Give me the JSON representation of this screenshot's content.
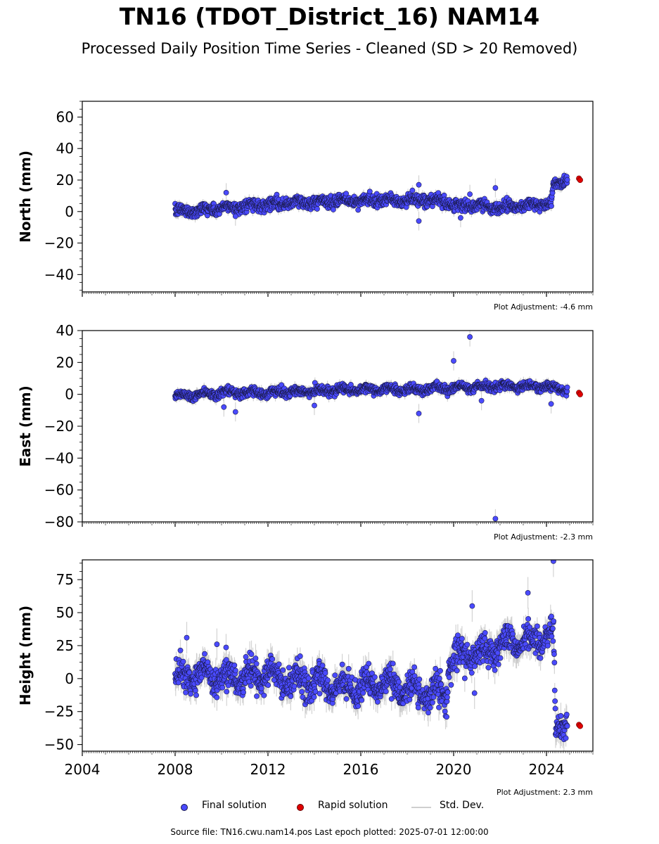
{
  "header": {
    "title": "TN16 (TDOT_District_16) NAM14",
    "subtitle": "Processed Daily Position Time Series - Cleaned (SD > 20 Removed)"
  },
  "colors": {
    "final": "#4a4aff",
    "final_edge": "#1a1a4a",
    "rapid": "#e00000",
    "std": "#c8c8c8"
  },
  "legend": {
    "final": "Final solution",
    "rapid": "Rapid solution",
    "std": "Std. Dev."
  },
  "footer": "Source file: TN16.cwu.nam14.pos  Last epoch plotted: 2025-07-01 12:00:00",
  "chart_data": [
    {
      "type": "scatter",
      "ylabel": "North (mm)",
      "xlim": [
        2004,
        2026
      ],
      "ylim": [
        -51,
        70
      ],
      "yticks": [
        -40,
        -20,
        0,
        20,
        40,
        60
      ],
      "adjustment": "Plot Adjustment: -4.6 mm",
      "trend": [
        [
          2008.0,
          0
        ],
        [
          2010.0,
          2
        ],
        [
          2012.0,
          5
        ],
        [
          2014.0,
          6
        ],
        [
          2016.0,
          7
        ],
        [
          2018.0,
          7
        ],
        [
          2019.6,
          7
        ],
        [
          2020.0,
          4
        ],
        [
          2022.0,
          3
        ],
        [
          2024.2,
          5
        ],
        [
          2024.3,
          16
        ],
        [
          2024.9,
          22
        ]
      ],
      "noise": 3.0,
      "outliers": [
        [
          2018.5,
          17
        ],
        [
          2018.5,
          -6
        ],
        [
          2021.8,
          15
        ],
        [
          2020.7,
          11
        ],
        [
          2010.2,
          12
        ],
        [
          2020.3,
          -4
        ],
        [
          2010.6,
          -3
        ]
      ],
      "rapid": [
        [
          2025.4,
          21
        ],
        [
          2025.45,
          20
        ]
      ]
    },
    {
      "type": "scatter",
      "ylabel": "East (mm)",
      "xlim": [
        2004,
        2026
      ],
      "ylim": [
        -80,
        40
      ],
      "yticks": [
        -80,
        -60,
        -40,
        -20,
        0,
        20,
        40
      ],
      "adjustment": "Plot Adjustment: -2.3 mm",
      "trend": [
        [
          2008.0,
          -1
        ],
        [
          2010.0,
          1
        ],
        [
          2012.0,
          1
        ],
        [
          2014.0,
          2
        ],
        [
          2016.0,
          3
        ],
        [
          2018.0,
          3
        ],
        [
          2020.0,
          4
        ],
        [
          2022.0,
          5
        ],
        [
          2024.0,
          5
        ],
        [
          2024.9,
          3
        ]
      ],
      "noise": 2.2,
      "outliers": [
        [
          2020.0,
          21
        ],
        [
          2020.7,
          36
        ],
        [
          2021.8,
          -78
        ],
        [
          2018.5,
          -12
        ],
        [
          2010.1,
          -8
        ],
        [
          2010.6,
          -11
        ],
        [
          2021.2,
          -4
        ],
        [
          2024.2,
          -6
        ],
        [
          2014.0,
          -7
        ]
      ],
      "rapid": [
        [
          2025.4,
          1
        ],
        [
          2025.45,
          0
        ]
      ]
    },
    {
      "type": "scatter",
      "ylabel": "Height (mm)",
      "xlim": [
        2004,
        2026
      ],
      "ylim": [
        -55,
        90
      ],
      "yticks": [
        -50,
        -25,
        0,
        25,
        50,
        75
      ],
      "xticks": [
        2004,
        2008,
        2012,
        2016,
        2020,
        2024
      ],
      "adjustment": "Plot Adjustment: 2.3 mm",
      "trend": [
        [
          2008.0,
          0
        ],
        [
          2009.0,
          5
        ],
        [
          2010.0,
          0
        ],
        [
          2011.0,
          2
        ],
        [
          2012.0,
          3
        ],
        [
          2013.0,
          -2
        ],
        [
          2014.0,
          -3
        ],
        [
          2015.0,
          -6
        ],
        [
          2016.0,
          -6
        ],
        [
          2017.0,
          -4
        ],
        [
          2018.0,
          -8
        ],
        [
          2019.0,
          -10
        ],
        [
          2019.7,
          -12
        ],
        [
          2019.8,
          15
        ],
        [
          2020.5,
          18
        ],
        [
          2021.5,
          20
        ],
        [
          2022.5,
          28
        ],
        [
          2023.5,
          30
        ],
        [
          2024.3,
          32
        ],
        [
          2024.4,
          -38
        ],
        [
          2024.9,
          -30
        ]
      ],
      "noise": 9.0,
      "outliers": [
        [
          2024.3,
          89
        ],
        [
          2023.2,
          65
        ],
        [
          2020.8,
          55
        ],
        [
          2008.5,
          31
        ],
        [
          2020.9,
          -11
        ],
        [
          2009.8,
          26
        ]
      ],
      "rapid": [
        [
          2025.4,
          -35
        ],
        [
          2025.45,
          -36
        ]
      ]
    }
  ]
}
